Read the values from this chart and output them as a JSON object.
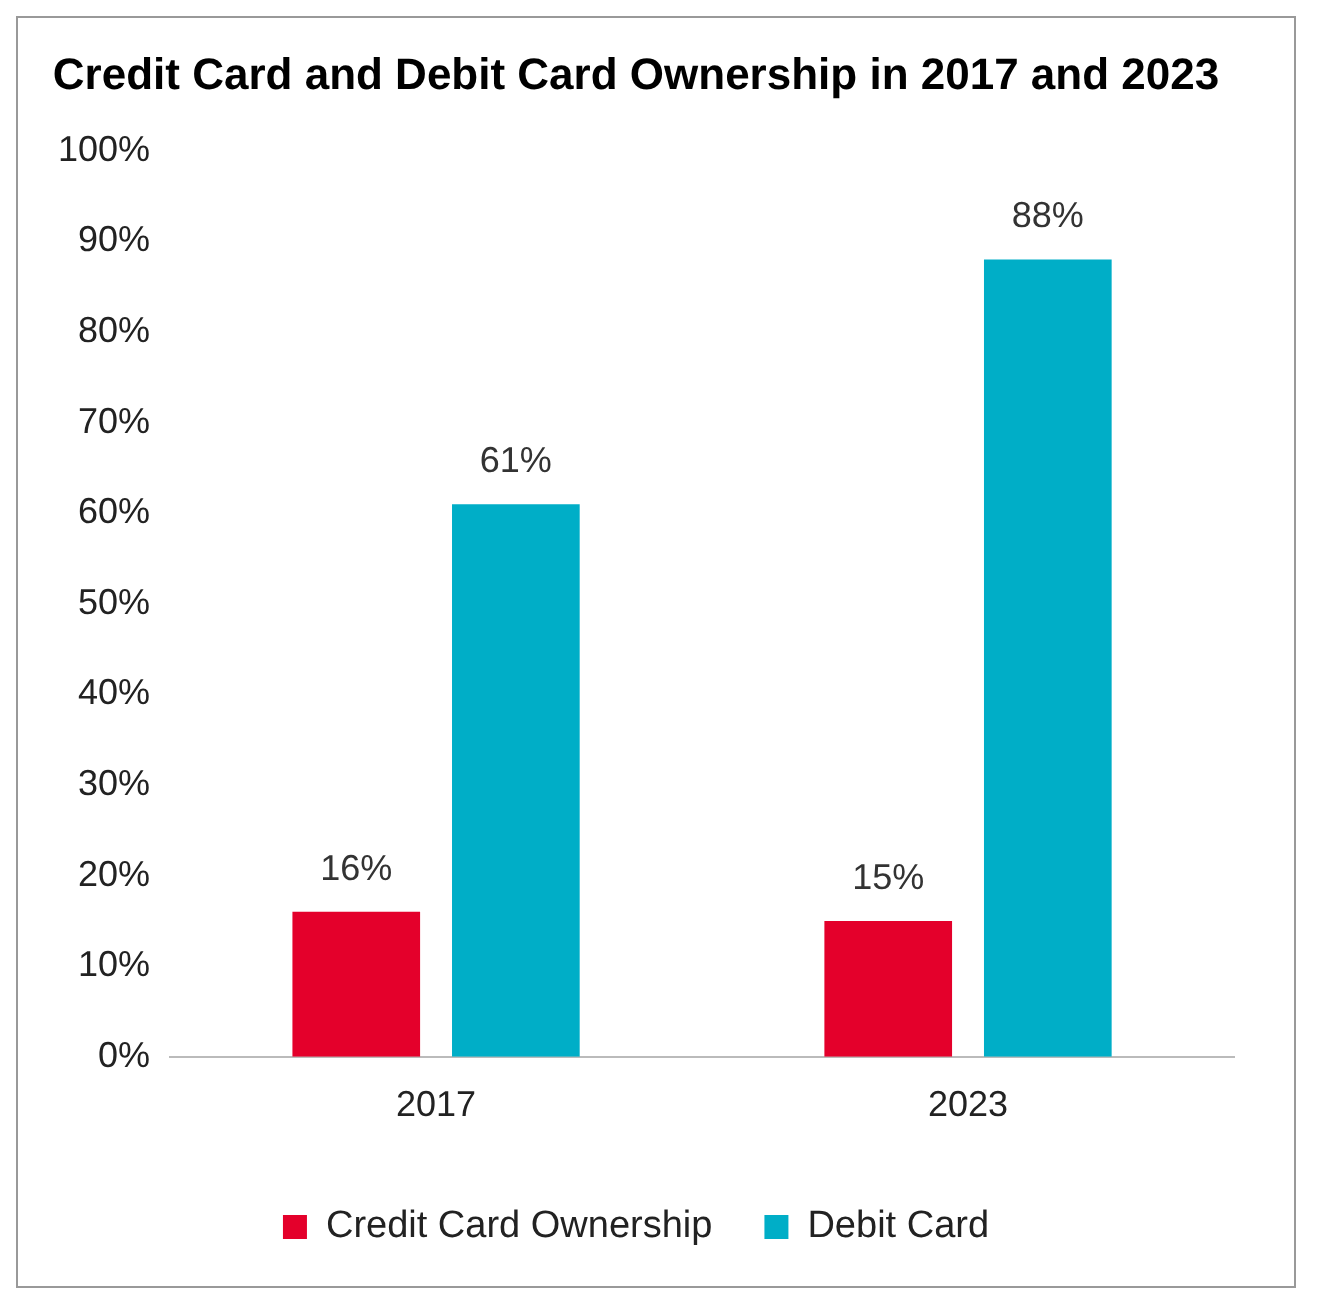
{
  "chart_data": {
    "type": "bar",
    "title": "Credit Card and Debit Card Ownership in 2017 and 2023",
    "categories": [
      "2017",
      "2023"
    ],
    "series": [
      {
        "name": "Credit Card Ownership",
        "color": "#e4002b",
        "values": [
          16,
          15
        ],
        "value_labels": [
          "16%",
          "15%"
        ]
      },
      {
        "name": "Debit Card",
        "color": "#00aec7",
        "values": [
          61,
          88
        ],
        "value_labels": [
          "61%",
          "88%"
        ]
      }
    ],
    "ylim": [
      0,
      100
    ],
    "yticks": [
      {
        "value": 0,
        "label": "0%"
      },
      {
        "value": 10,
        "label": "10%"
      },
      {
        "value": 20,
        "label": "20%"
      },
      {
        "value": 30,
        "label": "30%"
      },
      {
        "value": 40,
        "label": "40%"
      },
      {
        "value": 50,
        "label": "50%"
      },
      {
        "value": 60,
        "label": "60%"
      },
      {
        "value": 70,
        "label": "70%"
      },
      {
        "value": 80,
        "label": "80%"
      },
      {
        "value": 90,
        "label": "90%"
      },
      {
        "value": 100,
        "label": "100%"
      }
    ],
    "grid": false,
    "legend": "bottom"
  }
}
